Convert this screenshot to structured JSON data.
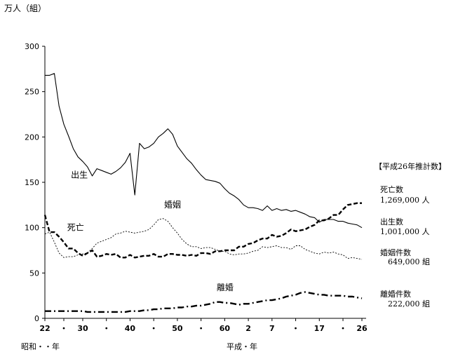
{
  "chart_data": {
    "type": "line",
    "ylabel": "万人（組）",
    "ylim": [
      0,
      300
    ],
    "yticks": [
      0,
      50,
      100,
      150,
      200,
      250,
      300
    ],
    "x_start_year": 1947,
    "x_end_year": 2014,
    "x_tick_labels": [
      {
        "label": "22",
        "year": 1947
      },
      {
        "label": "・",
        "year": 1951
      },
      {
        "label": "30",
        "year": 1955
      },
      {
        "label": "・",
        "year": 1960
      },
      {
        "label": "40",
        "year": 1965
      },
      {
        "label": "・",
        "year": 1970
      },
      {
        "label": "50",
        "year": 1975
      },
      {
        "label": "・",
        "year": 1980
      },
      {
        "label": "60",
        "year": 1985
      },
      {
        "label": "2",
        "year": 1990
      },
      {
        "label": "7",
        "year": 1995
      },
      {
        "label": "・",
        "year": 2000
      },
      {
        "label": "17",
        "year": 2005
      },
      {
        "label": "・",
        "year": 2010
      },
      {
        "label": "26",
        "year": 2014
      }
    ],
    "era_labels": {
      "showa": "昭和・・年",
      "heisei": "平成・年"
    },
    "series": [
      {
        "name": "出生",
        "style": "solid",
        "points": [
          [
            1947,
            268
          ],
          [
            1948,
            268
          ],
          [
            1949,
            270
          ],
          [
            1950,
            234
          ],
          [
            1951,
            214
          ],
          [
            1952,
            201
          ],
          [
            1953,
            187
          ],
          [
            1954,
            178
          ],
          [
            1955,
            173
          ],
          [
            1956,
            167
          ],
          [
            1957,
            157
          ],
          [
            1958,
            165
          ],
          [
            1959,
            163
          ],
          [
            1960,
            161
          ],
          [
            1961,
            159
          ],
          [
            1962,
            162
          ],
          [
            1963,
            166
          ],
          [
            1964,
            172
          ],
          [
            1965,
            182
          ],
          [
            1966,
            136
          ],
          [
            1967,
            193
          ],
          [
            1968,
            187
          ],
          [
            1969,
            189
          ],
          [
            1970,
            193
          ],
          [
            1971,
            200
          ],
          [
            1972,
            204
          ],
          [
            1973,
            209
          ],
          [
            1974,
            203
          ],
          [
            1975,
            190
          ],
          [
            1976,
            183
          ],
          [
            1977,
            176
          ],
          [
            1978,
            171
          ],
          [
            1979,
            164
          ],
          [
            1980,
            158
          ],
          [
            1981,
            153
          ],
          [
            1982,
            152
          ],
          [
            1983,
            151
          ],
          [
            1984,
            149
          ],
          [
            1985,
            143
          ],
          [
            1986,
            138
          ],
          [
            1987,
            135
          ],
          [
            1988,
            131
          ],
          [
            1989,
            125
          ],
          [
            1990,
            122
          ],
          [
            1991,
            122
          ],
          [
            1992,
            121
          ],
          [
            1993,
            119
          ],
          [
            1994,
            124
          ],
          [
            1995,
            119
          ],
          [
            1996,
            121
          ],
          [
            1997,
            119
          ],
          [
            1998,
            120
          ],
          [
            1999,
            118
          ],
          [
            2000,
            119
          ],
          [
            2001,
            117
          ],
          [
            2002,
            115
          ],
          [
            2003,
            112
          ],
          [
            2004,
            111
          ],
          [
            2005,
            106
          ],
          [
            2006,
            109
          ],
          [
            2007,
            109
          ],
          [
            2008,
            109
          ],
          [
            2009,
            107
          ],
          [
            2010,
            107
          ],
          [
            2011,
            105
          ],
          [
            2012,
            104
          ],
          [
            2013,
            103
          ],
          [
            2014,
            100
          ]
        ]
      },
      {
        "name": "死亡",
        "style": "dashed",
        "points": [
          [
            1947,
            114
          ],
          [
            1948,
            95
          ],
          [
            1949,
            95
          ],
          [
            1950,
            90
          ],
          [
            1951,
            84
          ],
          [
            1952,
            77
          ],
          [
            1953,
            77
          ],
          [
            1954,
            72
          ],
          [
            1955,
            69
          ],
          [
            1956,
            72
          ],
          [
            1957,
            75
          ],
          [
            1958,
            68
          ],
          [
            1959,
            69
          ],
          [
            1960,
            71
          ],
          [
            1961,
            70
          ],
          [
            1962,
            71
          ],
          [
            1963,
            67
          ],
          [
            1964,
            67
          ],
          [
            1965,
            70
          ],
          [
            1966,
            67
          ],
          [
            1967,
            68
          ],
          [
            1968,
            69
          ],
          [
            1969,
            69
          ],
          [
            1970,
            71
          ],
          [
            1971,
            68
          ],
          [
            1972,
            68
          ],
          [
            1973,
            71
          ],
          [
            1974,
            71
          ],
          [
            1975,
            70
          ],
          [
            1976,
            70
          ],
          [
            1977,
            69
          ],
          [
            1978,
            70
          ],
          [
            1979,
            69
          ],
          [
            1980,
            72
          ],
          [
            1981,
            72
          ],
          [
            1982,
            71
          ],
          [
            1983,
            74
          ],
          [
            1984,
            74
          ],
          [
            1985,
            75
          ],
          [
            1986,
            75
          ],
          [
            1987,
            75
          ],
          [
            1988,
            79
          ],
          [
            1989,
            79
          ],
          [
            1990,
            82
          ],
          [
            1991,
            83
          ],
          [
            1992,
            86
          ],
          [
            1993,
            88
          ],
          [
            1994,
            88
          ],
          [
            1995,
            92
          ],
          [
            1996,
            90
          ],
          [
            1997,
            91
          ],
          [
            1998,
            94
          ],
          [
            1999,
            98
          ],
          [
            2000,
            96
          ],
          [
            2001,
            97
          ],
          [
            2002,
            98
          ],
          [
            2003,
            101
          ],
          [
            2004,
            103
          ],
          [
            2005,
            108
          ],
          [
            2006,
            108
          ],
          [
            2007,
            110
          ],
          [
            2008,
            114
          ],
          [
            2009,
            114
          ],
          [
            2010,
            120
          ],
          [
            2011,
            125
          ],
          [
            2012,
            126
          ],
          [
            2013,
            127
          ],
          [
            2014,
            127
          ]
        ]
      },
      {
        "name": "婚姻",
        "style": "dotted",
        "points": [
          [
            1947,
            93
          ],
          [
            1948,
            95
          ],
          [
            1949,
            84
          ],
          [
            1950,
            72
          ],
          [
            1951,
            67
          ],
          [
            1952,
            68
          ],
          [
            1953,
            68
          ],
          [
            1954,
            70
          ],
          [
            1955,
            71
          ],
          [
            1956,
            72
          ],
          [
            1957,
            77
          ],
          [
            1958,
            83
          ],
          [
            1959,
            85
          ],
          [
            1960,
            87
          ],
          [
            1961,
            89
          ],
          [
            1962,
            93
          ],
          [
            1963,
            94
          ],
          [
            1964,
            96
          ],
          [
            1965,
            95
          ],
          [
            1966,
            94
          ],
          [
            1967,
            95
          ],
          [
            1968,
            96
          ],
          [
            1969,
            98
          ],
          [
            1970,
            103
          ],
          [
            1971,
            109
          ],
          [
            1972,
            110
          ],
          [
            1973,
            107
          ],
          [
            1974,
            100
          ],
          [
            1975,
            94
          ],
          [
            1976,
            87
          ],
          [
            1977,
            82
          ],
          [
            1978,
            79
          ],
          [
            1979,
            79
          ],
          [
            1980,
            77
          ],
          [
            1981,
            78
          ],
          [
            1982,
            78
          ],
          [
            1983,
            76
          ],
          [
            1984,
            74
          ],
          [
            1985,
            74
          ],
          [
            1986,
            71
          ],
          [
            1987,
            70
          ],
          [
            1988,
            71
          ],
          [
            1989,
            71
          ],
          [
            1990,
            72
          ],
          [
            1991,
            74
          ],
          [
            1992,
            75
          ],
          [
            1993,
            79
          ],
          [
            1994,
            78
          ],
          [
            1995,
            79
          ],
          [
            1996,
            80
          ],
          [
            1997,
            78
          ],
          [
            1998,
            78
          ],
          [
            1999,
            76
          ],
          [
            2000,
            80
          ],
          [
            2001,
            80
          ],
          [
            2002,
            76
          ],
          [
            2003,
            74
          ],
          [
            2004,
            72
          ],
          [
            2005,
            71
          ],
          [
            2006,
            73
          ],
          [
            2007,
            72
          ],
          [
            2008,
            73
          ],
          [
            2009,
            71
          ],
          [
            2010,
            70
          ],
          [
            2011,
            66
          ],
          [
            2012,
            67
          ],
          [
            2013,
            66
          ],
          [
            2014,
            65
          ]
        ]
      },
      {
        "name": "離婚",
        "style": "dashdot",
        "points": [
          [
            1947,
            8
          ],
          [
            1948,
            8
          ],
          [
            1949,
            8
          ],
          [
            1950,
            8
          ],
          [
            1951,
            8
          ],
          [
            1952,
            8
          ],
          [
            1953,
            8
          ],
          [
            1954,
            8
          ],
          [
            1955,
            8
          ],
          [
            1956,
            7
          ],
          [
            1957,
            7
          ],
          [
            1958,
            7
          ],
          [
            1959,
            7
          ],
          [
            1960,
            7
          ],
          [
            1961,
            7
          ],
          [
            1962,
            7
          ],
          [
            1963,
            7
          ],
          [
            1964,
            7
          ],
          [
            1965,
            8
          ],
          [
            1966,
            8
          ],
          [
            1967,
            8
          ],
          [
            1968,
            9
          ],
          [
            1969,
            9
          ],
          [
            1970,
            10
          ],
          [
            1971,
            10
          ],
          [
            1972,
            11
          ],
          [
            1973,
            11
          ],
          [
            1974,
            11
          ],
          [
            1975,
            12
          ],
          [
            1976,
            12
          ],
          [
            1977,
            13
          ],
          [
            1978,
            13
          ],
          [
            1979,
            14
          ],
          [
            1980,
            14
          ],
          [
            1981,
            15
          ],
          [
            1982,
            16
          ],
          [
            1983,
            18
          ],
          [
            1984,
            18
          ],
          [
            1985,
            17
          ],
          [
            1986,
            17
          ],
          [
            1987,
            16
          ],
          [
            1988,
            15
          ],
          [
            1989,
            16
          ],
          [
            1990,
            16
          ],
          [
            1991,
            17
          ],
          [
            1992,
            18
          ],
          [
            1993,
            19
          ],
          [
            1994,
            20
          ],
          [
            1995,
            20
          ],
          [
            1996,
            21
          ],
          [
            1997,
            22
          ],
          [
            1998,
            24
          ],
          [
            1999,
            25
          ],
          [
            2000,
            26
          ],
          [
            2001,
            28
          ],
          [
            2002,
            29
          ],
          [
            2003,
            28
          ],
          [
            2004,
            27
          ],
          [
            2005,
            26
          ],
          [
            2006,
            26
          ],
          [
            2007,
            25
          ],
          [
            2008,
            25
          ],
          [
            2009,
            25
          ],
          [
            2010,
            25
          ],
          [
            2011,
            24
          ],
          [
            2012,
            24
          ],
          [
            2013,
            23
          ],
          [
            2014,
            22
          ]
        ]
      }
    ],
    "series_labels": [
      {
        "text": "出生",
        "year": 1952.5,
        "value": 155
      },
      {
        "text": "死亡",
        "year": 1951.7,
        "value": 97
      },
      {
        "text": "婚姻",
        "year": 1972.2,
        "value": 122
      },
      {
        "text": "離婚",
        "year": 1983.3,
        "value": 31
      }
    ],
    "estimate_box": {
      "title": "【平成26年推計数】",
      "items": [
        {
          "label": "死亡数",
          "value": "1,269,000 人"
        },
        {
          "label": "出生数",
          "value": "1,001,000 人"
        },
        {
          "label": "婚姻件数",
          "value": "649,000 組"
        },
        {
          "label": "離婚件数",
          "value": "222,000 組"
        }
      ]
    }
  }
}
